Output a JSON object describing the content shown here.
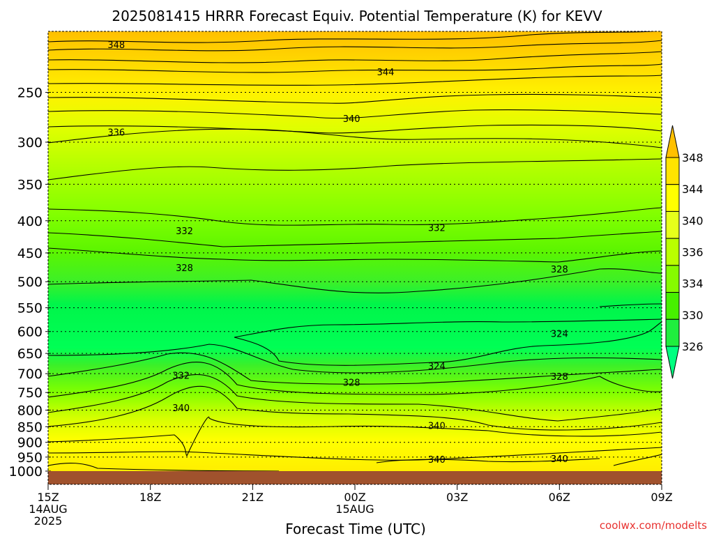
{
  "chart_data": {
    "type": "heatmap",
    "title": "2025081415 HRRR Forecast Equiv. Potential Temperature (K) for KEVV",
    "xlabel": "Forecast Time (UTC)",
    "ylabel": "",
    "credit": "coolwx.com/modelts",
    "x_ticks": [
      {
        "hour": 0,
        "lines": [
          "15Z",
          "14AUG",
          "2025"
        ]
      },
      {
        "hour": 3,
        "lines": [
          "18Z"
        ]
      },
      {
        "hour": 6,
        "lines": [
          "21Z"
        ]
      },
      {
        "hour": 9,
        "lines": [
          "00Z",
          "15AUG"
        ]
      },
      {
        "hour": 12,
        "lines": [
          "03Z"
        ]
      },
      {
        "hour": 15,
        "lines": [
          "06Z"
        ]
      },
      {
        "hour": 18,
        "lines": [
          "09Z"
        ]
      }
    ],
    "xlim": [
      0,
      18
    ],
    "y_scale": "log-pressure",
    "ylim": [
      1000,
      200
    ],
    "y_ticks": [
      250,
      300,
      350,
      400,
      450,
      500,
      550,
      600,
      650,
      700,
      750,
      800,
      850,
      900,
      950,
      1000
    ],
    "grid": true,
    "surface_pressure_hPa": 1000,
    "colorbar": {
      "labels": [
        326,
        330,
        334,
        336,
        340,
        344,
        348
      ],
      "colors": [
        "#00ff80",
        "#1fee3e",
        "#47f000",
        "#86fb00",
        "#baff00",
        "#e6ff1a",
        "#ffff00",
        "#ffe400",
        "#ffc000"
      ]
    },
    "contour_interval_K": 2,
    "contour_labels": [
      {
        "value": 348,
        "hour": 2.0,
        "p": 210
      },
      {
        "value": 344,
        "hour": 9.9,
        "p": 232
      },
      {
        "value": 340,
        "hour": 8.9,
        "p": 275
      },
      {
        "value": 336,
        "hour": 2.0,
        "p": 289
      },
      {
        "value": 332,
        "hour": 4.0,
        "p": 415
      },
      {
        "value": 332,
        "hour": 11.4,
        "p": 410
      },
      {
        "value": 328,
        "hour": 4.0,
        "p": 475
      },
      {
        "value": 328,
        "hour": 15.0,
        "p": 477
      },
      {
        "value": 324,
        "hour": 15.0,
        "p": 604
      },
      {
        "value": 324,
        "hour": 11.4,
        "p": 680
      },
      {
        "value": 332,
        "hour": 3.9,
        "p": 704
      },
      {
        "value": 328,
        "hour": 8.9,
        "p": 722
      },
      {
        "value": 328,
        "hour": 15.0,
        "p": 707
      },
      {
        "value": 340,
        "hour": 3.9,
        "p": 793
      },
      {
        "value": 340,
        "hour": 11.4,
        "p": 846
      },
      {
        "value": 340,
        "hour": 11.4,
        "p": 957
      },
      {
        "value": 340,
        "hour": 15.0,
        "p": 955
      }
    ]
  }
}
